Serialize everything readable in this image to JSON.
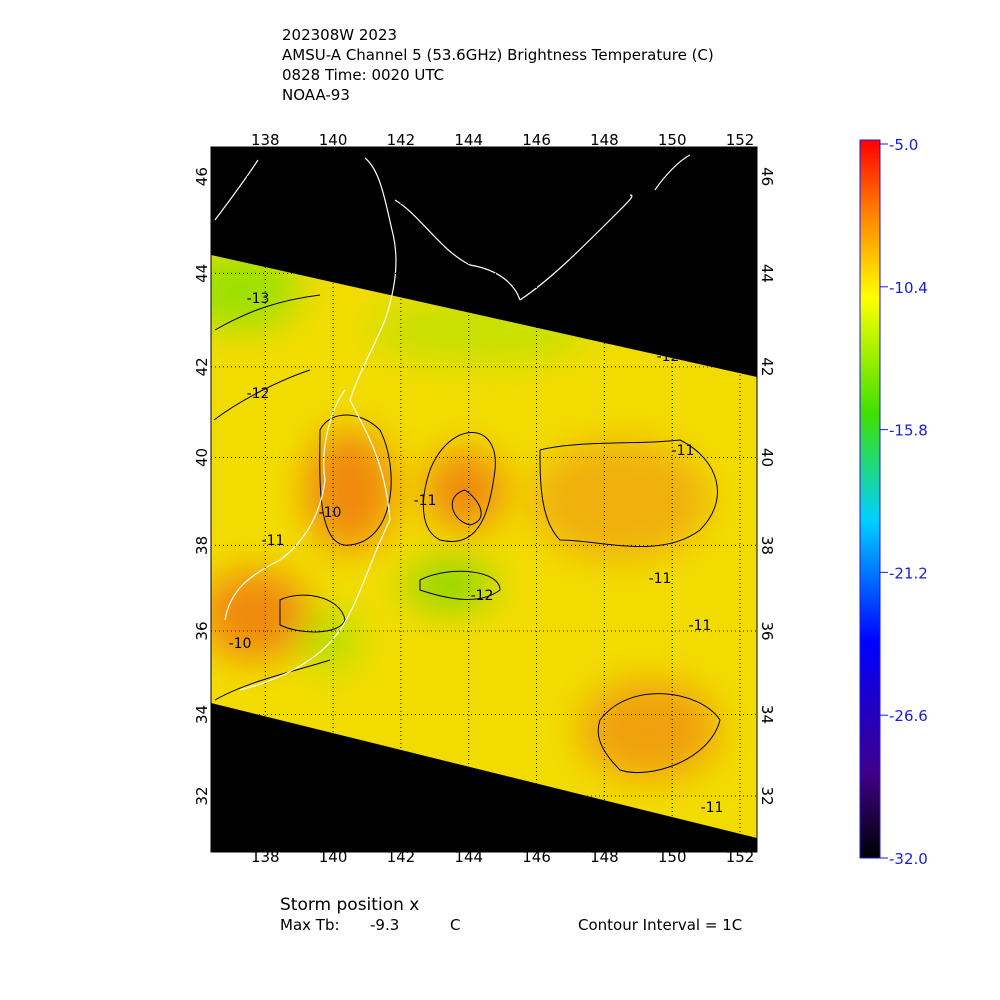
{
  "header": {
    "lines": [
      "202308W 2023",
      "AMSU-A Channel 5 (53.6GHz) Brightness Temperature (C)",
      "0828 Time: 0020 UTC",
      "NOAA-93"
    ]
  },
  "map": {
    "lonlim": [
      136.4,
      152.5
    ],
    "latlim": [
      30.6,
      46.6
    ],
    "lon_ticks": [
      138,
      140,
      142,
      144,
      146,
      148,
      150,
      152
    ],
    "lat_ticks": [
      32,
      34,
      36,
      38,
      40,
      42,
      44,
      46
    ],
    "contour_labels": [
      -13,
      -12,
      -12,
      -11,
      -10,
      -11,
      -11,
      -12,
      -11,
      -11,
      -10,
      -11
    ]
  },
  "colorbar": {
    "lim": [
      -32,
      -5
    ],
    "ticks": [
      {
        "value": -5,
        "label": "-5.0"
      },
      {
        "value": -10.4,
        "label": "-10.4"
      },
      {
        "value": -15.8,
        "label": "-15.8"
      },
      {
        "value": -21.2,
        "label": "-21.2"
      },
      {
        "value": -26.6,
        "label": "-26.6"
      },
      {
        "value": -32,
        "label": "-32.0"
      }
    ]
  },
  "footer": {
    "storm": "Storm position x",
    "max_tb_label": "Max Tb:",
    "max_tb": -9.3,
    "max_tb_unit": "C",
    "contour": "Contour Interval = 1C"
  }
}
